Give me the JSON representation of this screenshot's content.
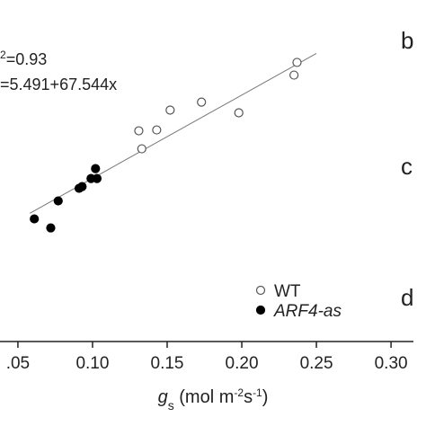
{
  "chart_data": {
    "type": "scatter",
    "xlim": [
      0.038,
      0.315
    ],
    "ylim": [
      -1,
      26
    ],
    "xticks": [
      {
        "value": 0.05,
        "label": ".05"
      },
      {
        "value": 0.1,
        "label": "0.10"
      },
      {
        "value": 0.15,
        "label": "0.15"
      },
      {
        "value": 0.2,
        "label": "0.20"
      },
      {
        "value": 0.25,
        "label": "0.25"
      },
      {
        "value": 0.3,
        "label": "0.30"
      }
    ],
    "x_label": [
      {
        "text": "g",
        "style": "italic"
      },
      {
        "text": "s",
        "style": "sub"
      },
      {
        "text": " (mol m",
        "style": "normal"
      },
      {
        "text": "-2",
        "style": "sup"
      },
      {
        "text": "s",
        "style": "normal"
      },
      {
        "text": "-1",
        "style": "sup"
      },
      {
        "text": ")",
        "style": "normal"
      }
    ],
    "annotations": [
      {
        "text": "2",
        "style": "sup"
      },
      {
        "text": "=0.93",
        "style": "normal"
      },
      {
        "text": "=5.491+67.544x",
        "style": "normal"
      }
    ],
    "fit": {
      "intercept": 5.491,
      "slope": 67.544,
      "x": [
        0.058,
        0.25
      ],
      "color": "#777777"
    },
    "panel_letters": [
      "b",
      "c",
      "d"
    ],
    "series": [
      {
        "name": "WT",
        "color": "#555555",
        "filled": false,
        "x": [
          0.237,
          0.235,
          0.198,
          0.173,
          0.152,
          0.143,
          0.131,
          0.133
        ],
        "values": [
          21.65,
          20.62,
          17.56,
          18.43,
          17.78,
          16.17,
          16.1,
          14.64
        ]
      },
      {
        "name": "ARF4-as",
        "color": "#000000",
        "filled": true,
        "x": [
          0.102,
          0.099,
          0.103,
          0.093,
          0.091,
          0.077,
          0.061,
          0.072
        ],
        "values": [
          13.03,
          12.23,
          12.23,
          11.57,
          11.43,
          10.41,
          8.95,
          8.22
        ]
      }
    ]
  }
}
